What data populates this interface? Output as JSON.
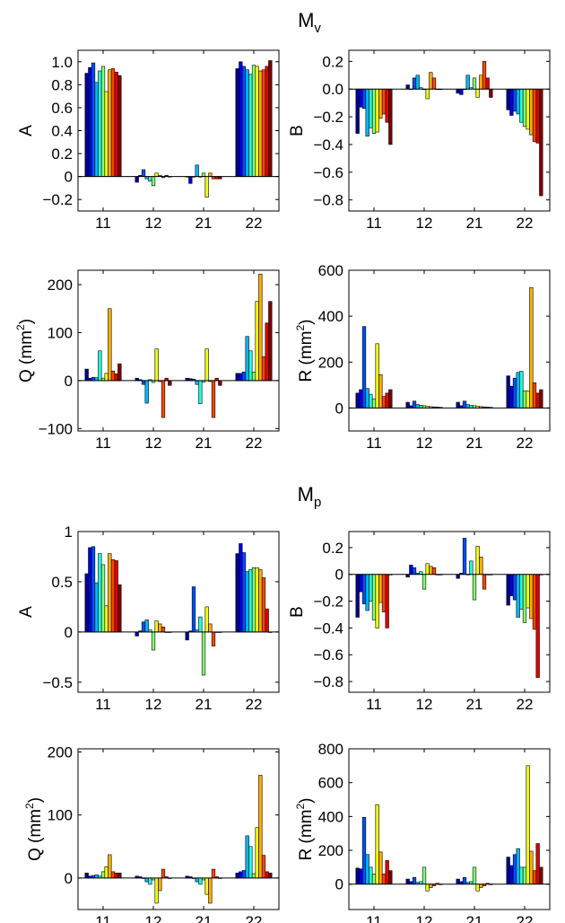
{
  "palette": [
    "#00008f",
    "#0000e6",
    "#0050ff",
    "#00b7ff",
    "#20ffdf",
    "#88ff77",
    "#f0ff0f",
    "#ffb000",
    "#ff4800",
    "#df0000",
    "#800000"
  ],
  "groups": [
    {
      "title": "M",
      "title_sub": "v",
      "panels": [
        {
          "type": "bar",
          "ylabel": "A",
          "unit": "",
          "categories": [
            "11",
            "12",
            "21",
            "22"
          ],
          "ylim": [
            -0.3,
            1.1
          ],
          "yticks": [
            -0.2,
            0,
            0.2,
            0.4,
            0.6,
            0.8,
            1.0
          ],
          "ytick_labels": [
            "−0.2",
            "0",
            "0.2",
            "0.4",
            "0.6",
            "0.8",
            "1.0"
          ],
          "values": [
            [
              0.9,
              0.95,
              0.99,
              0.82,
              0.92,
              0.96,
              0.74,
              0.93,
              0.94,
              0.91,
              0.88
            ],
            [
              -0.05,
              0.01,
              0.06,
              -0.02,
              -0.04,
              -0.08,
              0.03,
              0.01,
              -0.01,
              0.01,
              0.0
            ],
            [
              0.0,
              -0.06,
              0.0,
              0.1,
              0.0,
              0.03,
              -0.18,
              0.03,
              -0.02,
              -0.02,
              -0.02
            ],
            [
              0.94,
              1.0,
              0.96,
              0.93,
              0.89,
              0.97,
              0.96,
              0.92,
              0.93,
              0.96,
              1.01
            ]
          ]
        },
        {
          "type": "bar",
          "ylabel": "B",
          "unit": "",
          "categories": [
            "11",
            "12",
            "21",
            "22"
          ],
          "ylim": [
            -0.88,
            0.28
          ],
          "yticks": [
            -0.8,
            -0.6,
            -0.4,
            -0.2,
            0,
            0.2
          ],
          "ytick_labels": [
            "−0.8",
            "−0.6",
            "−0.4",
            "−0.2",
            "0.0",
            "0.2"
          ],
          "values": [
            [
              -0.32,
              -0.13,
              -0.14,
              -0.34,
              -0.28,
              -0.32,
              -0.31,
              -0.21,
              -0.18,
              -0.24,
              -0.4
            ],
            [
              0.03,
              0.0,
              0.08,
              0.1,
              0.01,
              0.0,
              -0.07,
              0.12,
              0.08,
              0.0,
              0.0
            ],
            [
              -0.03,
              -0.04,
              0.0,
              0.1,
              0.01,
              0.08,
              -0.06,
              0.1,
              0.2,
              0.08,
              -0.06
            ],
            [
              -0.15,
              -0.19,
              -0.16,
              -0.18,
              -0.24,
              -0.27,
              -0.29,
              -0.33,
              -0.38,
              -0.39,
              -0.77
            ]
          ]
        },
        {
          "type": "bar",
          "ylabel": "Q (mm",
          "unit": "2",
          "categories": [
            "11",
            "12",
            "21",
            "22"
          ],
          "ylim": [
            -105,
            230
          ],
          "yticks": [
            -100,
            0,
            100,
            200
          ],
          "ytick_labels": [
            "−100",
            "0",
            "100",
            "200"
          ],
          "values": [
            [
              24,
              5,
              7,
              6,
              62,
              5,
              15,
              150,
              20,
              14,
              35
            ],
            [
              5,
              2,
              -8,
              -47,
              2,
              -4,
              66,
              -2,
              -77,
              5,
              -10
            ],
            [
              5,
              4,
              3,
              -8,
              -48,
              -3,
              66,
              -2,
              -77,
              5,
              -10
            ],
            [
              15,
              15,
              18,
              92,
              62,
              18,
              165,
              222,
              50,
              120,
              165
            ]
          ]
        },
        {
          "type": "bar",
          "ylabel": "R (mm",
          "unit": "2",
          "categories": [
            "11",
            "12",
            "21",
            "22"
          ],
          "ylim": [
            -100,
            600
          ],
          "yticks": [
            0,
            200,
            400,
            600
          ],
          "ytick_labels": [
            "0",
            "200",
            "400",
            "600"
          ],
          "values": [
            [
              65,
              80,
              355,
              85,
              60,
              40,
              280,
              145,
              50,
              65,
              80
            ],
            [
              25,
              10,
              30,
              15,
              12,
              10,
              8,
              6,
              5,
              4,
              3
            ],
            [
              25,
              10,
              30,
              15,
              12,
              10,
              8,
              6,
              5,
              4,
              3
            ],
            [
              140,
              95,
              130,
              155,
              160,
              75,
              75,
              525,
              110,
              65,
              80
            ]
          ]
        }
      ]
    },
    {
      "title": "M",
      "title_sub": "p",
      "panels": [
        {
          "type": "bar",
          "ylabel": "A",
          "unit": "",
          "categories": [
            "11",
            "12",
            "21",
            "22"
          ],
          "ylim": [
            -0.6,
            1.0
          ],
          "yticks": [
            -0.5,
            0,
            0.5,
            1
          ],
          "ytick_labels": [
            "−0.5",
            "0",
            "0.5",
            "1"
          ],
          "values": [
            [
              0.58,
              0.84,
              0.85,
              0.49,
              0.78,
              0.67,
              0.26,
              0.78,
              0.72,
              0.71,
              0.47
            ],
            [
              -0.04,
              0.01,
              0.1,
              0.12,
              0.02,
              -0.18,
              0.11,
              0.08,
              0.05,
              0.0,
              0.0
            ],
            [
              -0.08,
              0.01,
              0.45,
              0.02,
              0.15,
              -0.43,
              0.25,
              0.08,
              -0.14,
              0.0,
              0.0
            ],
            [
              0.78,
              0.88,
              0.79,
              0.6,
              0.62,
              0.64,
              0.64,
              0.62,
              0.54,
              0.23,
              0.0
            ]
          ]
        },
        {
          "type": "bar",
          "ylabel": "B",
          "unit": "",
          "categories": [
            "11",
            "12",
            "21",
            "22"
          ],
          "ylim": [
            -0.88,
            0.32
          ],
          "yticks": [
            -0.8,
            -0.6,
            -0.4,
            -0.2,
            0,
            0.2
          ],
          "ytick_labels": [
            "−0.8",
            "−0.6",
            "−0.4",
            "−0.2",
            "0",
            "0.2"
          ],
          "values": [
            [
              -0.32,
              -0.13,
              -0.22,
              -0.27,
              -0.2,
              -0.34,
              -0.4,
              -0.21,
              -0.28,
              -0.4,
              0.0
            ],
            [
              -0.02,
              0.07,
              0.05,
              0.01,
              0.02,
              -0.11,
              0.08,
              0.06,
              0.05,
              0.0,
              0.0
            ],
            [
              -0.03,
              0.01,
              0.27,
              0.0,
              0.1,
              -0.19,
              0.21,
              0.13,
              -0.11,
              0.0,
              0.0
            ],
            [
              -0.23,
              -0.16,
              -0.19,
              -0.32,
              -0.26,
              -0.36,
              -0.25,
              -0.33,
              -0.41,
              -0.77,
              0.0
            ]
          ]
        },
        {
          "type": "bar",
          "ylabel": "Q (mm",
          "unit": "2",
          "categories": [
            "11",
            "12",
            "21",
            "22"
          ],
          "ylim": [
            -50,
            205
          ],
          "yticks": [
            0,
            100,
            200
          ],
          "ytick_labels": [
            "0",
            "100",
            "200"
          ],
          "values": [
            [
              8,
              3,
              4,
              5,
              3,
              10,
              18,
              37,
              10,
              8,
              8
            ],
            [
              3,
              2,
              0,
              -6,
              -10,
              -3,
              -40,
              -20,
              14,
              2,
              0
            ],
            [
              3,
              2,
              0,
              -6,
              -10,
              -3,
              -26,
              -40,
              14,
              2,
              0
            ],
            [
              8,
              10,
              12,
              67,
              50,
              7,
              80,
              163,
              36,
              10,
              8
            ]
          ]
        },
        {
          "type": "bar",
          "ylabel": "R (mm",
          "unit": "2",
          "categories": [
            "11",
            "12",
            "21",
            "22"
          ],
          "ylim": [
            -150,
            800
          ],
          "yticks": [
            0,
            200,
            400,
            600,
            800
          ],
          "ytick_labels": [
            "0",
            "200",
            "400",
            "600",
            "800"
          ],
          "values": [
            [
              95,
              90,
              395,
              175,
              100,
              60,
              470,
              190,
              60,
              140,
              80
            ],
            [
              30,
              15,
              40,
              10,
              15,
              100,
              -40,
              -20,
              -10,
              5,
              0
            ],
            [
              30,
              15,
              40,
              10,
              15,
              100,
              -40,
              -20,
              -10,
              5,
              0
            ],
            [
              160,
              110,
              175,
              210,
              100,
              100,
              700,
              195,
              80,
              240,
              100
            ]
          ]
        }
      ]
    }
  ]
}
